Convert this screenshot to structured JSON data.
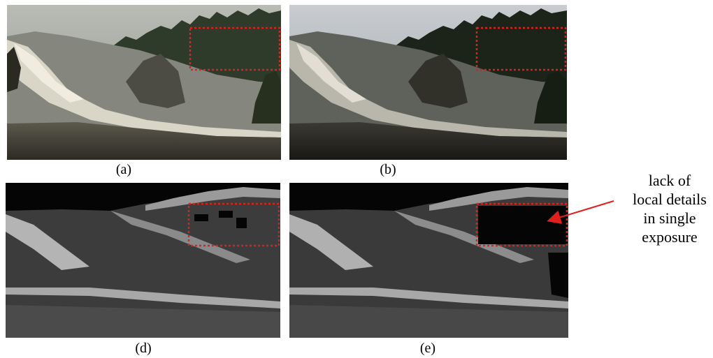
{
  "figure": {
    "panels": [
      {
        "id": "a",
        "caption": "(a)",
        "image": "landscape-photo-normal-exposure"
      },
      {
        "id": "b",
        "caption": "(b)",
        "image": "landscape-photo-low-exposure"
      },
      {
        "id": "d",
        "caption": "(d)",
        "image": "grayscale-detail-map-a"
      },
      {
        "id": "e",
        "caption": "(e)",
        "image": "grayscale-detail-map-b"
      }
    ],
    "annotation": {
      "lines": [
        "lack of",
        "local details",
        "in single",
        "exposure"
      ]
    },
    "colors": {
      "highlight_box": "#e0201c",
      "arrow": "#e0201c",
      "map_background": "#050505"
    }
  }
}
